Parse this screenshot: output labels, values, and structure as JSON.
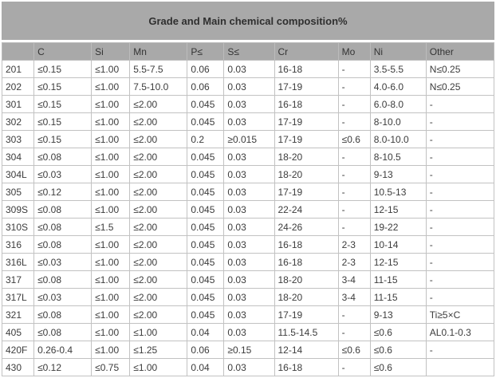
{
  "title": "Grade and Main chemical composition%",
  "table": {
    "columns": [
      "",
      "C",
      "Si",
      "Mn",
      "P≤",
      "S≤",
      "Cr",
      "Mo",
      "Ni",
      "Other"
    ],
    "rows": [
      [
        "201",
        "≤0.15",
        "≤1.00",
        "5.5-7.5",
        "0.06",
        "0.03",
        "16-18",
        "-",
        "3.5-5.5",
        "N≤0.25"
      ],
      [
        "202",
        "≤0.15",
        "≤1.00",
        "7.5-10.0",
        "0.06",
        "0.03",
        "17-19",
        "-",
        "4.0-6.0",
        "N≤0.25"
      ],
      [
        "301",
        "≤0.15",
        "≤1.00",
        "≤2.00",
        "0.045",
        "0.03",
        "16-18",
        "-",
        "6.0-8.0",
        "-"
      ],
      [
        "302",
        "≤0.15",
        "≤1.00",
        "≤2.00",
        "0.045",
        "0.03",
        "17-19",
        "-",
        "8-10.0",
        "-"
      ],
      [
        "303",
        "≤0.15",
        "≤1.00",
        "≤2.00",
        "0.2",
        "≥0.015",
        "17-19",
        "≤0.6",
        "8.0-10.0",
        "-"
      ],
      [
        "304",
        "≤0.08",
        "≤1.00",
        "≤2.00",
        "0.045",
        "0.03",
        "18-20",
        "-",
        "8-10.5",
        "-"
      ],
      [
        "304L",
        "≤0.03",
        "≤1.00",
        "≤2.00",
        "0.045",
        "0.03",
        "18-20",
        "-",
        "9-13",
        "-"
      ],
      [
        "305",
        "≤0.12",
        "≤1.00",
        "≤2.00",
        "0.045",
        "0.03",
        "17-19",
        "-",
        "10.5-13",
        "-"
      ],
      [
        "309S",
        "≤0.08",
        "≤1.00",
        "≤2.00",
        "0.045",
        "0.03",
        "22-24",
        "-",
        "12-15",
        "-"
      ],
      [
        "310S",
        "≤0.08",
        "≤1.5",
        "≤2.00",
        "0.045",
        "0.03",
        "24-26",
        "-",
        "19-22",
        "-"
      ],
      [
        "316",
        "≤0.08",
        "≤1.00",
        "≤2.00",
        "0.045",
        "0.03",
        "16-18",
        "2-3",
        "10-14",
        "-"
      ],
      [
        "316L",
        "≤0.03",
        "≤1.00",
        "≤2.00",
        "0.045",
        "0.03",
        "16-18",
        "2-3",
        "12-15",
        "-"
      ],
      [
        "317",
        "≤0.08",
        "≤1.00",
        "≤2.00",
        "0.045",
        "0.03",
        "18-20",
        "3-4",
        "11-15",
        "-"
      ],
      [
        "317L",
        "≤0.03",
        "≤1.00",
        "≤2.00",
        "0.045",
        "0.03",
        "18-20",
        "3-4",
        "11-15",
        "-"
      ],
      [
        "321",
        "≤0.08",
        "≤1.00",
        "≤2.00",
        "0.045",
        "0.03",
        "17-19",
        "-",
        "9-13",
        "Ti≥5×C"
      ],
      [
        "405",
        "≤0.08",
        "≤1.00",
        "≤1.00",
        "0.04",
        "0.03",
        "11.5-14.5",
        "-",
        "≤0.6",
        "AL0.1-0.3"
      ],
      [
        "420F",
        "0.26-0.4",
        "≤1.00",
        "≤1.25",
        "0.06",
        "≥0.15",
        "12-14",
        "≤0.6",
        "≤0.6",
        "-"
      ],
      [
        "430",
        "≤0.12",
        "≤0.75",
        "≤1.00",
        "0.04",
        "0.03",
        "16-18",
        "-",
        "≤0.6",
        ""
      ]
    ]
  },
  "colors": {
    "header_bg": "#a9a9a9",
    "border": "#c2c2c2",
    "cell_bg": "#ffffff",
    "text": "#3c3c3c"
  }
}
